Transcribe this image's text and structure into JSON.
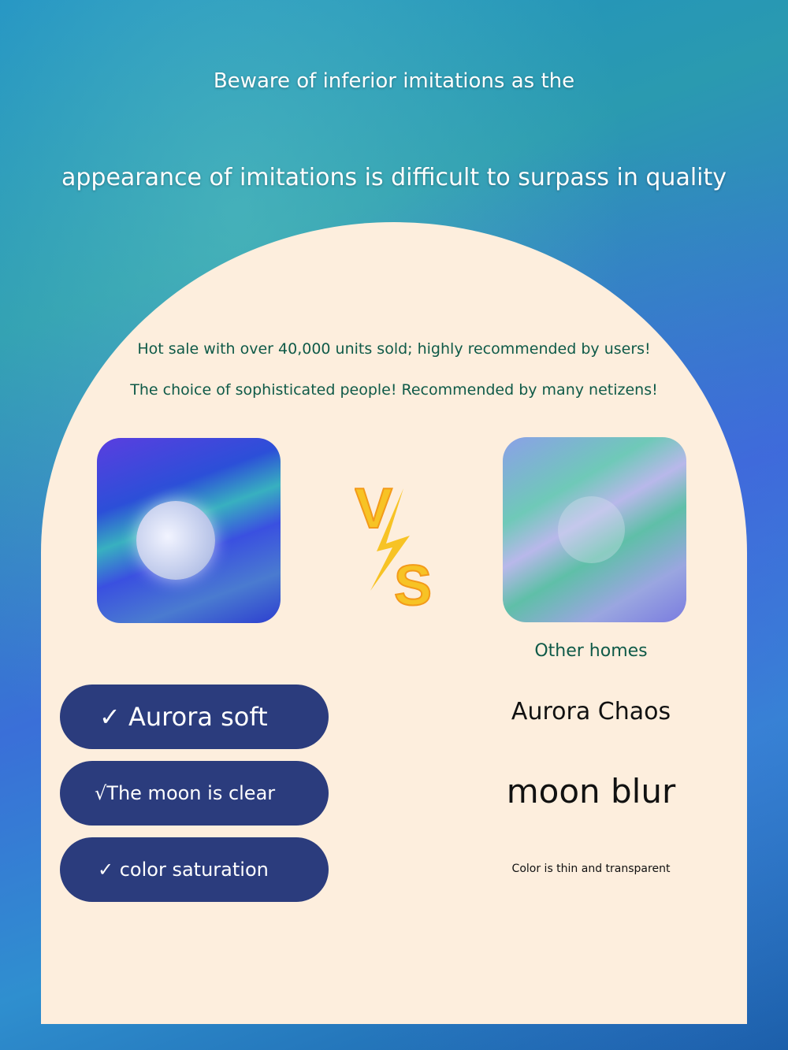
{
  "header": {
    "line1": "Beware of inferior imitations as the",
    "line2": "appearance of imitations is difficult to surpass in quality"
  },
  "taglines": [
    "Hot sale with over 40,000 units sold; highly recommended by users!",
    "The choice of sophisticated people! Recommended by many netizens!"
  ],
  "vs_label": "VS",
  "ours": {
    "features": [
      "✓ Aurora soft",
      "√The moon is clear",
      "✓ color saturation"
    ]
  },
  "others": {
    "label": "Other homes",
    "features": [
      "Aurora Chaos",
      "moon blur",
      "Color is thin and transparent"
    ]
  },
  "colors": {
    "panel": "#fdeedd",
    "pill": "#2b3c7d",
    "tagline": "#0f5a48",
    "vs": "#f7c325"
  }
}
